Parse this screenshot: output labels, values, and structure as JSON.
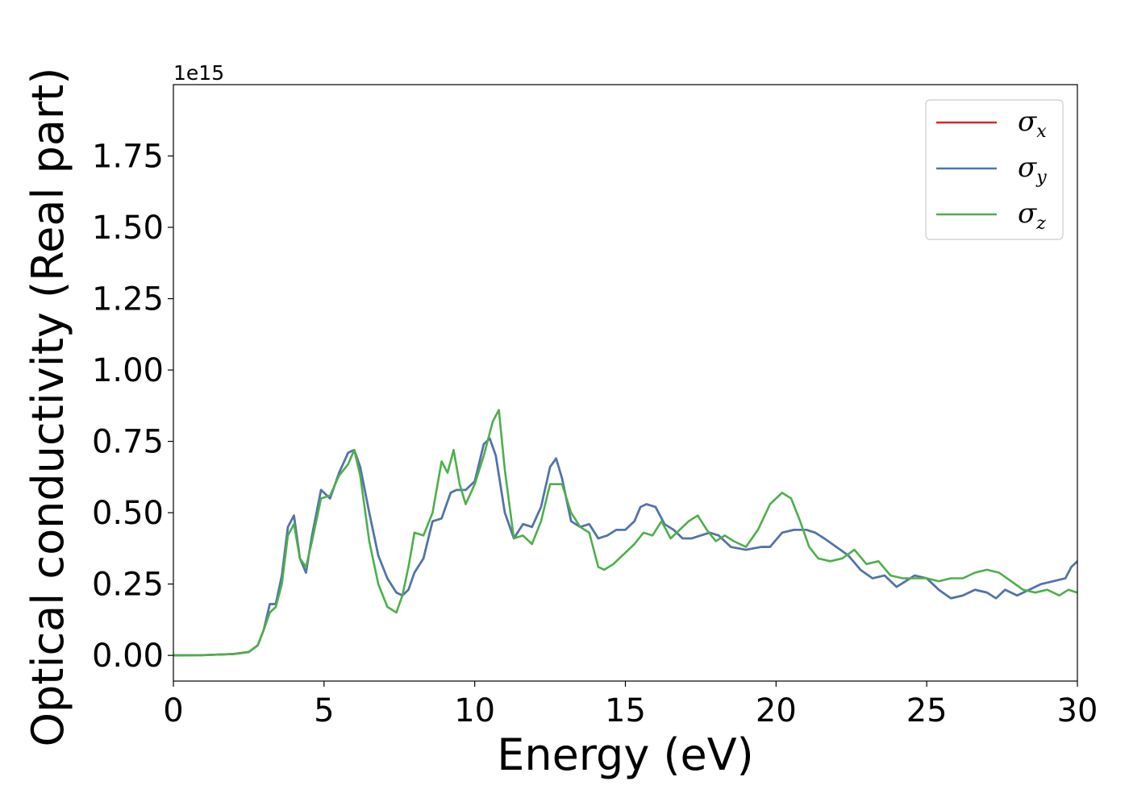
{
  "chart_data": {
    "type": "line",
    "xlabel": "Energy (eV)",
    "ylabel": "Optical conductivity (Real part)",
    "y_offset_label": "1e15",
    "xlim": [
      0,
      30
    ],
    "ylim": [
      -0.09,
      2.0
    ],
    "x_ticks": [
      0,
      5,
      10,
      15,
      20,
      25,
      30
    ],
    "x_tick_labels": [
      "0",
      "5",
      "10",
      "15",
      "20",
      "25",
      "30"
    ],
    "y_ticks": [
      0.0,
      0.25,
      0.5,
      0.75,
      1.0,
      1.25,
      1.5,
      1.75
    ],
    "y_tick_labels": [
      "0.00",
      "0.25",
      "0.50",
      "0.75",
      "1.00",
      "1.25",
      "1.50",
      "1.75"
    ],
    "grid": false,
    "legend_position": "top-right",
    "series": [
      {
        "name": "σx",
        "symbol": "σ",
        "subscript": "x",
        "color": "#d62728",
        "x": [
          0,
          1,
          2,
          2.5,
          2.8,
          3.0,
          3.2,
          3.4,
          3.6,
          3.8,
          4.0,
          4.2,
          4.4,
          4.6,
          4.9,
          5.2,
          5.5,
          5.8,
          6.0,
          6.2,
          6.5,
          6.8,
          7.1,
          7.4,
          7.6,
          7.8,
          8.0,
          8.3,
          8.6,
          8.9,
          9.2,
          9.4,
          9.7,
          10.0,
          10.3,
          10.5,
          10.7,
          11.0,
          11.3,
          11.6,
          11.9,
          12.2,
          12.5,
          12.7,
          12.9,
          13.2,
          13.5,
          13.8,
          14.1,
          14.4,
          14.7,
          15.0,
          15.3,
          15.5,
          15.7,
          16.0,
          16.3,
          16.6,
          16.9,
          17.2,
          17.5,
          17.8,
          18.1,
          18.5,
          19.0,
          19.5,
          19.8,
          20.2,
          20.6,
          21.0,
          21.3,
          21.6,
          22.0,
          22.4,
          22.8,
          23.2,
          23.6,
          24.0,
          24.3,
          24.6,
          25.0,
          25.4,
          25.8,
          26.2,
          26.6,
          27.0,
          27.3,
          27.6,
          28.0,
          28.4,
          28.8,
          29.2,
          29.6,
          29.8,
          30.0
        ],
        "values": [
          0.0,
          0.001,
          0.005,
          0.012,
          0.035,
          0.09,
          0.18,
          0.18,
          0.28,
          0.45,
          0.49,
          0.34,
          0.29,
          0.42,
          0.58,
          0.55,
          0.64,
          0.71,
          0.72,
          0.66,
          0.5,
          0.35,
          0.27,
          0.22,
          0.21,
          0.23,
          0.29,
          0.34,
          0.47,
          0.48,
          0.57,
          0.58,
          0.58,
          0.61,
          0.74,
          0.76,
          0.7,
          0.5,
          0.41,
          0.46,
          0.45,
          0.52,
          0.66,
          0.69,
          0.62,
          0.47,
          0.45,
          0.46,
          0.41,
          0.42,
          0.44,
          0.44,
          0.47,
          0.52,
          0.53,
          0.52,
          0.46,
          0.44,
          0.41,
          0.41,
          0.42,
          0.43,
          0.42,
          0.38,
          0.37,
          0.38,
          0.38,
          0.43,
          0.44,
          0.44,
          0.43,
          0.41,
          0.38,
          0.35,
          0.3,
          0.27,
          0.28,
          0.24,
          0.26,
          0.28,
          0.27,
          0.23,
          0.2,
          0.21,
          0.23,
          0.22,
          0.2,
          0.23,
          0.21,
          0.23,
          0.25,
          0.26,
          0.27,
          0.31,
          0.33
        ]
      },
      {
        "name": "σy",
        "symbol": "σ",
        "subscript": "y",
        "color": "#4a77b0",
        "x": [
          0,
          1,
          2,
          2.5,
          2.8,
          3.0,
          3.2,
          3.4,
          3.6,
          3.8,
          4.0,
          4.2,
          4.4,
          4.6,
          4.9,
          5.2,
          5.5,
          5.8,
          6.0,
          6.2,
          6.5,
          6.8,
          7.1,
          7.4,
          7.6,
          7.8,
          8.0,
          8.3,
          8.6,
          8.9,
          9.2,
          9.4,
          9.7,
          10.0,
          10.3,
          10.5,
          10.7,
          11.0,
          11.3,
          11.6,
          11.9,
          12.2,
          12.5,
          12.7,
          12.9,
          13.2,
          13.5,
          13.8,
          14.1,
          14.4,
          14.7,
          15.0,
          15.3,
          15.5,
          15.7,
          16.0,
          16.3,
          16.6,
          16.9,
          17.2,
          17.5,
          17.8,
          18.1,
          18.5,
          19.0,
          19.5,
          19.8,
          20.2,
          20.6,
          21.0,
          21.3,
          21.6,
          22.0,
          22.4,
          22.8,
          23.2,
          23.6,
          24.0,
          24.3,
          24.6,
          25.0,
          25.4,
          25.8,
          26.2,
          26.6,
          27.0,
          27.3,
          27.6,
          28.0,
          28.4,
          28.8,
          29.2,
          29.6,
          29.8,
          30.0
        ],
        "values": [
          0.0,
          0.001,
          0.005,
          0.012,
          0.035,
          0.09,
          0.18,
          0.18,
          0.28,
          0.45,
          0.49,
          0.34,
          0.29,
          0.42,
          0.58,
          0.55,
          0.64,
          0.71,
          0.72,
          0.66,
          0.5,
          0.35,
          0.27,
          0.22,
          0.21,
          0.23,
          0.29,
          0.34,
          0.47,
          0.48,
          0.57,
          0.58,
          0.58,
          0.61,
          0.74,
          0.76,
          0.7,
          0.5,
          0.41,
          0.46,
          0.45,
          0.52,
          0.66,
          0.69,
          0.62,
          0.47,
          0.45,
          0.46,
          0.41,
          0.42,
          0.44,
          0.44,
          0.47,
          0.52,
          0.53,
          0.52,
          0.46,
          0.44,
          0.41,
          0.41,
          0.42,
          0.43,
          0.42,
          0.38,
          0.37,
          0.38,
          0.38,
          0.43,
          0.44,
          0.44,
          0.43,
          0.41,
          0.38,
          0.35,
          0.3,
          0.27,
          0.28,
          0.24,
          0.26,
          0.28,
          0.27,
          0.23,
          0.2,
          0.21,
          0.23,
          0.22,
          0.2,
          0.23,
          0.21,
          0.23,
          0.25,
          0.26,
          0.27,
          0.31,
          0.33
        ]
      },
      {
        "name": "σz",
        "symbol": "σ",
        "subscript": "z",
        "color": "#4daf4a",
        "x": [
          0,
          1,
          2,
          2.5,
          2.8,
          3.0,
          3.2,
          3.4,
          3.6,
          3.8,
          4.0,
          4.2,
          4.4,
          4.6,
          4.9,
          5.2,
          5.5,
          5.8,
          6.0,
          6.2,
          6.5,
          6.8,
          7.1,
          7.4,
          7.6,
          7.8,
          8.0,
          8.3,
          8.6,
          8.9,
          9.1,
          9.3,
          9.5,
          9.7,
          10.0,
          10.3,
          10.6,
          10.8,
          11.0,
          11.3,
          11.6,
          11.9,
          12.2,
          12.5,
          12.7,
          12.9,
          13.2,
          13.5,
          13.8,
          14.1,
          14.3,
          14.6,
          15.0,
          15.3,
          15.6,
          15.9,
          16.2,
          16.5,
          16.8,
          17.1,
          17.4,
          17.7,
          18.0,
          18.3,
          18.6,
          19.0,
          19.4,
          19.8,
          20.2,
          20.5,
          20.8,
          21.1,
          21.4,
          21.8,
          22.2,
          22.6,
          23.0,
          23.4,
          23.8,
          24.2,
          24.6,
          25.0,
          25.4,
          25.8,
          26.2,
          26.6,
          27.0,
          27.4,
          27.8,
          28.2,
          28.6,
          29.0,
          29.4,
          29.7,
          30.0
        ],
        "values": [
          0.0,
          0.001,
          0.005,
          0.012,
          0.035,
          0.09,
          0.15,
          0.17,
          0.25,
          0.42,
          0.46,
          0.34,
          0.31,
          0.4,
          0.55,
          0.56,
          0.63,
          0.67,
          0.72,
          0.63,
          0.4,
          0.25,
          0.17,
          0.15,
          0.21,
          0.31,
          0.43,
          0.42,
          0.5,
          0.68,
          0.64,
          0.72,
          0.6,
          0.53,
          0.6,
          0.7,
          0.82,
          0.86,
          0.65,
          0.41,
          0.42,
          0.39,
          0.47,
          0.6,
          0.6,
          0.6,
          0.5,
          0.45,
          0.43,
          0.31,
          0.3,
          0.32,
          0.36,
          0.39,
          0.43,
          0.42,
          0.47,
          0.41,
          0.44,
          0.47,
          0.49,
          0.44,
          0.4,
          0.42,
          0.4,
          0.38,
          0.44,
          0.53,
          0.57,
          0.55,
          0.47,
          0.38,
          0.34,
          0.33,
          0.34,
          0.37,
          0.32,
          0.33,
          0.28,
          0.27,
          0.27,
          0.27,
          0.26,
          0.27,
          0.27,
          0.29,
          0.3,
          0.29,
          0.26,
          0.23,
          0.22,
          0.23,
          0.21,
          0.23,
          0.22
        ]
      }
    ]
  }
}
